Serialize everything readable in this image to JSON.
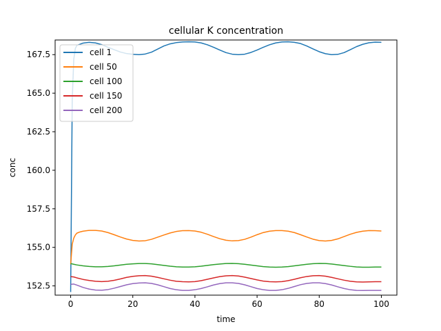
{
  "chart_data": {
    "type": "line",
    "title": "cellular K concentration",
    "xlabel": "time",
    "ylabel": "conc",
    "xlim": [
      -5,
      105
    ],
    "ylim": [
      151.9,
      168.45
    ],
    "xticks": [
      0,
      20,
      40,
      60,
      80,
      100
    ],
    "yticks": [
      152.5,
      155.0,
      157.5,
      160.0,
      162.5,
      165.0,
      167.5
    ],
    "ytick_labels": [
      "152.5",
      "155.0",
      "157.5",
      "160.0",
      "162.5",
      "165.0",
      "167.5"
    ],
    "grid": false,
    "legend_position": "top-left",
    "series": [
      {
        "name": "cell 1",
        "color": "#1f77b4",
        "x": [
          0,
          0.5,
          1,
          1.5,
          2,
          4,
          6,
          8,
          10,
          12,
          14,
          16,
          18,
          20,
          22,
          24,
          26,
          28,
          30,
          32,
          34,
          36,
          38,
          40,
          42,
          44,
          46,
          48,
          50,
          52,
          54,
          56,
          58,
          60,
          62,
          64,
          66,
          68,
          70,
          72,
          74,
          76,
          78,
          80,
          82,
          84,
          86,
          88,
          90,
          92,
          94,
          96,
          98,
          100
        ],
        "y": [
          152.1,
          164.5,
          167.2,
          167.9,
          168.1,
          168.25,
          168.3,
          168.26,
          168.15,
          167.98,
          167.82,
          167.67,
          167.57,
          167.52,
          167.5,
          167.54,
          167.66,
          167.86,
          168.06,
          168.2,
          168.28,
          168.32,
          168.33,
          168.32,
          168.26,
          168.14,
          167.98,
          167.8,
          167.63,
          167.53,
          167.5,
          167.53,
          167.64,
          167.8,
          167.98,
          168.14,
          168.26,
          168.32,
          168.33,
          168.3,
          168.22,
          168.06,
          167.87,
          167.69,
          167.56,
          167.5,
          167.52,
          167.63,
          167.82,
          168.02,
          168.17,
          168.27,
          168.31,
          168.3
        ]
      },
      {
        "name": "cell 50",
        "color": "#ff7f0e",
        "x": [
          0,
          0.5,
          1,
          1.5,
          2,
          3,
          4,
          6,
          8,
          10,
          12,
          14,
          16,
          18,
          20,
          22,
          24,
          26,
          28,
          30,
          32,
          34,
          36,
          38,
          40,
          42,
          44,
          46,
          48,
          50,
          52,
          54,
          56,
          58,
          60,
          62,
          64,
          66,
          68,
          70,
          72,
          74,
          76,
          78,
          80,
          82,
          84,
          86,
          88,
          90,
          92,
          94,
          96,
          98,
          100
        ],
        "y": [
          153.9,
          155.2,
          155.6,
          155.8,
          155.92,
          156.0,
          156.05,
          156.1,
          156.1,
          156.06,
          155.96,
          155.82,
          155.67,
          155.54,
          155.45,
          155.41,
          155.43,
          155.52,
          155.66,
          155.8,
          155.93,
          156.03,
          156.08,
          156.09,
          156.06,
          155.98,
          155.85,
          155.7,
          155.56,
          155.46,
          155.42,
          155.44,
          155.52,
          155.66,
          155.82,
          155.96,
          156.05,
          156.09,
          156.09,
          156.05,
          155.96,
          155.82,
          155.67,
          155.53,
          155.44,
          155.41,
          155.45,
          155.55,
          155.7,
          155.85,
          155.97,
          156.05,
          156.09,
          156.08,
          156.06
        ]
      },
      {
        "name": "cell 100",
        "color": "#2ca02c",
        "x": [
          0,
          1,
          2,
          4,
          6,
          8,
          10,
          12,
          14,
          16,
          18,
          20,
          22,
          24,
          26,
          28,
          30,
          32,
          34,
          36,
          38,
          40,
          42,
          44,
          46,
          48,
          50,
          52,
          54,
          56,
          58,
          60,
          62,
          64,
          66,
          68,
          70,
          72,
          74,
          76,
          78,
          80,
          82,
          84,
          86,
          88,
          90,
          92,
          94,
          96,
          98,
          100
        ],
        "y": [
          153.95,
          153.9,
          153.86,
          153.8,
          153.76,
          153.74,
          153.74,
          153.76,
          153.8,
          153.85,
          153.9,
          153.93,
          153.95,
          153.95,
          153.93,
          153.88,
          153.83,
          153.78,
          153.74,
          153.72,
          153.72,
          153.74,
          153.78,
          153.83,
          153.88,
          153.92,
          153.95,
          153.96,
          153.94,
          153.9,
          153.85,
          153.8,
          153.75,
          153.72,
          153.71,
          153.72,
          153.75,
          153.8,
          153.85,
          153.9,
          153.94,
          153.96,
          153.95,
          153.92,
          153.87,
          153.82,
          153.77,
          153.73,
          153.71,
          153.71,
          153.72,
          153.72
        ]
      },
      {
        "name": "cell 150",
        "color": "#d62728",
        "x": [
          0,
          1,
          2,
          4,
          6,
          8,
          10,
          12,
          14,
          16,
          18,
          20,
          22,
          24,
          26,
          28,
          30,
          32,
          34,
          36,
          38,
          40,
          42,
          44,
          46,
          48,
          50,
          52,
          54,
          56,
          58,
          60,
          62,
          64,
          66,
          68,
          70,
          72,
          74,
          76,
          78,
          80,
          82,
          84,
          86,
          88,
          90,
          92,
          94,
          96,
          98,
          100
        ],
        "y": [
          153.1,
          153.08,
          153.02,
          152.92,
          152.85,
          152.8,
          152.78,
          152.8,
          152.86,
          152.95,
          153.05,
          153.12,
          153.16,
          153.17,
          153.13,
          153.05,
          152.96,
          152.87,
          152.8,
          152.77,
          152.76,
          152.78,
          152.84,
          152.93,
          153.02,
          153.1,
          153.15,
          153.17,
          153.14,
          153.07,
          152.98,
          152.89,
          152.81,
          152.77,
          152.76,
          152.78,
          152.84,
          152.93,
          153.03,
          153.11,
          153.16,
          153.17,
          153.13,
          153.05,
          152.96,
          152.87,
          152.8,
          152.76,
          152.75,
          152.76,
          152.77,
          152.77
        ]
      },
      {
        "name": "cell 200",
        "color": "#9467bd",
        "x": [
          0,
          1,
          2,
          4,
          6,
          8,
          10,
          12,
          14,
          16,
          18,
          20,
          22,
          24,
          26,
          28,
          30,
          32,
          34,
          36,
          38,
          40,
          42,
          44,
          46,
          48,
          50,
          52,
          54,
          56,
          58,
          60,
          62,
          64,
          66,
          68,
          70,
          72,
          74,
          76,
          78,
          80,
          82,
          84,
          86,
          88,
          90,
          92,
          94,
          96,
          98,
          100
        ],
        "y": [
          152.6,
          152.62,
          152.55,
          152.4,
          152.29,
          152.23,
          152.22,
          152.26,
          152.35,
          152.46,
          152.57,
          152.65,
          152.69,
          152.7,
          152.66,
          152.57,
          152.45,
          152.33,
          152.25,
          152.21,
          152.21,
          152.25,
          152.33,
          152.44,
          152.56,
          152.65,
          152.7,
          152.7,
          152.66,
          152.57,
          152.45,
          152.33,
          152.25,
          152.21,
          152.21,
          152.25,
          152.34,
          152.46,
          152.58,
          152.66,
          152.7,
          152.7,
          152.65,
          152.56,
          152.44,
          152.33,
          152.25,
          152.21,
          152.2,
          152.21,
          152.21,
          152.21
        ]
      }
    ]
  }
}
